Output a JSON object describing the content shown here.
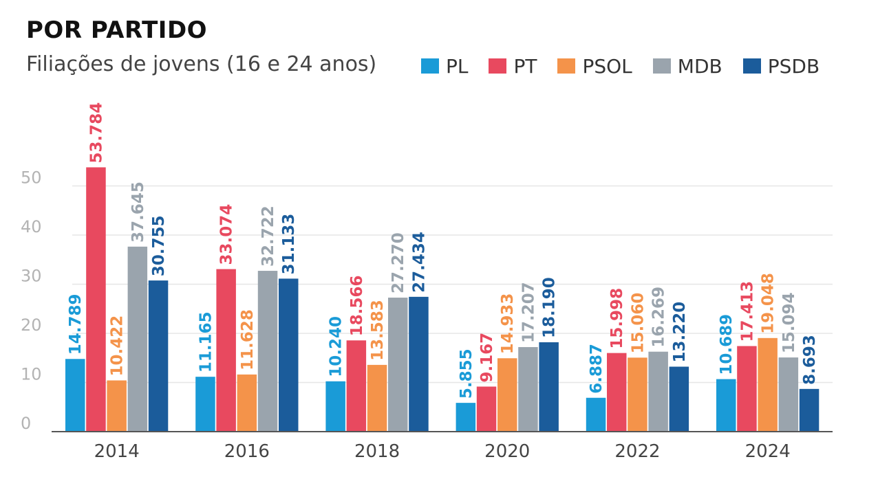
{
  "header": {
    "title": "POR PARTIDO",
    "subtitle": "Filiações de jovens (16 e 24 anos)"
  },
  "colors": {
    "PL": "#1a9bd7",
    "PT": "#e8495f",
    "PSOL": "#f4934a",
    "MDB": "#9aa4ad",
    "PSDB": "#1b5c9b",
    "grid": "#e6e6e6",
    "axis": "#555555",
    "ytick": "#b3b3b3",
    "xtick": "#444444"
  },
  "chart_data": {
    "type": "bar",
    "title": "POR PARTIDO",
    "subtitle": "Filiações de jovens (16 e 24 anos)",
    "categories": [
      "2014",
      "2016",
      "2018",
      "2020",
      "2022",
      "2024"
    ],
    "yticks": [
      "0",
      "10",
      "20",
      "30",
      "40",
      "50"
    ],
    "ylim": [
      0,
      50
    ],
    "grid": true,
    "legend_position": "top-right",
    "series": [
      {
        "name": "PL",
        "values": [
          14.789,
          11.165,
          10.24,
          5.855,
          6.887,
          10.689
        ],
        "labels": [
          "14.789",
          "11.165",
          "10.240",
          "5.855",
          "6.887",
          "10.689"
        ]
      },
      {
        "name": "PT",
        "values": [
          53.784,
          33.074,
          18.566,
          9.167,
          15.998,
          17.413
        ],
        "labels": [
          "53.784",
          "33.074",
          "18.566",
          "9.167",
          "15.998",
          "17.413"
        ]
      },
      {
        "name": "PSOL",
        "values": [
          10.422,
          11.628,
          13.583,
          14.933,
          15.06,
          19.048
        ],
        "labels": [
          "10.422",
          "11.628",
          "13.583",
          "14.933",
          "15.060",
          "19.048"
        ]
      },
      {
        "name": "MDB",
        "values": [
          37.645,
          32.722,
          27.27,
          17.207,
          16.269,
          15.094
        ],
        "labels": [
          "37.645",
          "32.722",
          "27.270",
          "17.207",
          "16.269",
          "15.094"
        ]
      },
      {
        "name": "PSDB",
        "values": [
          30.755,
          31.133,
          27.434,
          18.19,
          13.22,
          8.693
        ],
        "labels": [
          "30.755",
          "31.133",
          "27.434",
          "18.190",
          "13.220",
          "8.693"
        ]
      }
    ]
  }
}
